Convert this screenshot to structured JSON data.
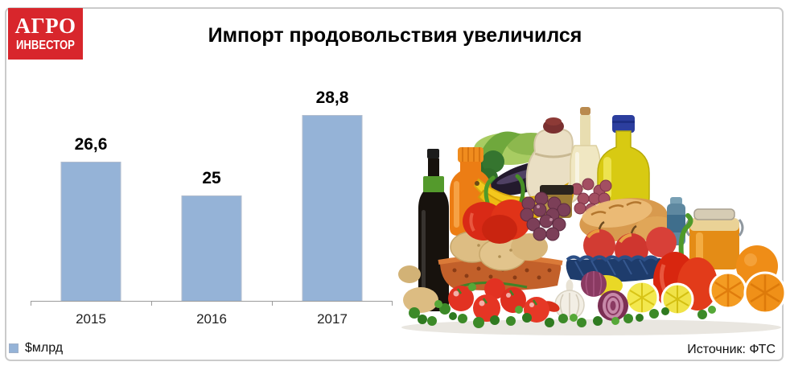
{
  "card": {
    "background": "#ffffff",
    "border_color": "#cbcbcb"
  },
  "logo": {
    "line1": "АГРО",
    "line2": "ИНВЕСТОР",
    "background": "#d8262c",
    "color": "#ffffff"
  },
  "title": "Импорт продовольствия увеличился",
  "chart_data": {
    "type": "bar",
    "title": "Импорт продовольствия увеличился",
    "categories": [
      "2015",
      "2016",
      "2017"
    ],
    "values": [
      26.6,
      25,
      28.8
    ],
    "value_labels": [
      "26,6",
      "25",
      "28,8"
    ],
    "series": [
      {
        "name": "$млрд",
        "values": [
          26.6,
          25,
          28.8
        ]
      }
    ],
    "xlabel": "",
    "ylabel": "",
    "ylim": [
      20,
      30
    ],
    "grid": false,
    "legend_position": "bottom-left",
    "bar_color": "#95b3d7"
  },
  "legend": {
    "label": "$млрд",
    "swatch_color": "#95b3d7"
  },
  "source": {
    "text": "Источник: ФТС"
  }
}
